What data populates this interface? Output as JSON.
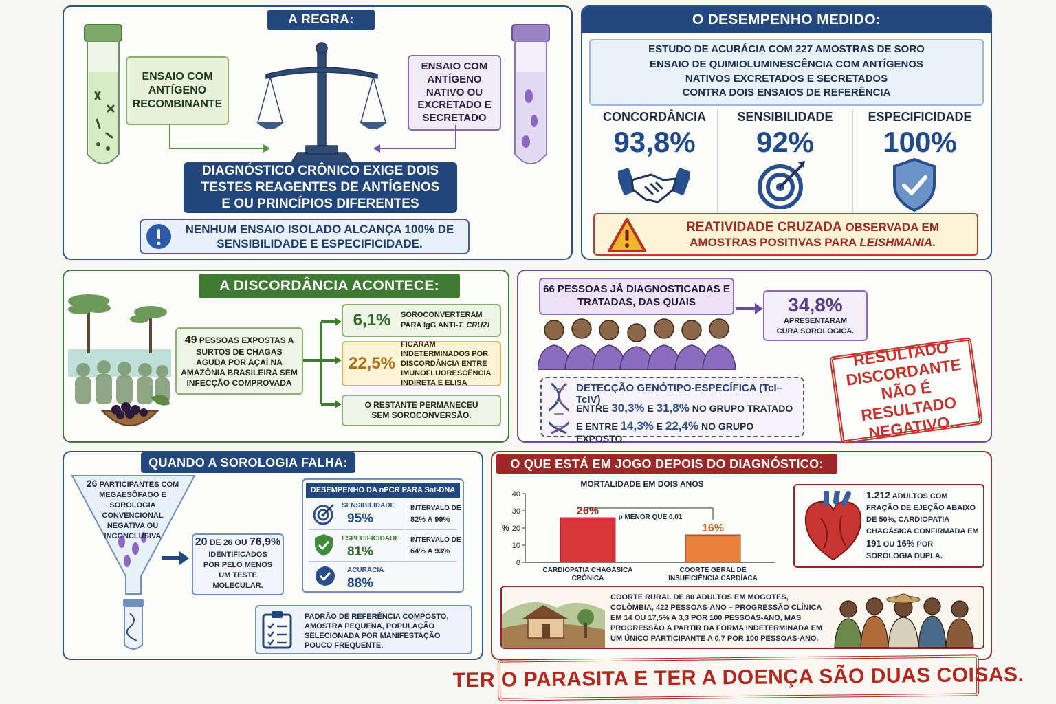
{
  "rule": {
    "title": "A REGRA:",
    "recombinant": "ENSAIO COM ANTÍGENO RECOMBINANTE",
    "native": "ENSAIO COM ANTÍGENO NATIVO OU EXCRETADO E SECRETADO",
    "requirement": "DIAGNÓSTICO CRÔNICO EXIGE DOIS TESTES REAGENTES DE ANTÍGENOS E OU PRINCÍPIOS DIFERENTES",
    "warning": "NENHUM ENSAIO ISOLADO ALCANÇA 100% DE SENSIBILIDADE E ESPECIFICIDADE."
  },
  "performance": {
    "title": "O DESEMPENHO MEDIDO:",
    "study_line1": "ESTUDO DE ACURÁCIA COM 227 AMOSTRAS DE SORO",
    "study_line2": "ENSAIO DE QUIMIOLUMINESCÊNCIA COM ANTÍGENOS",
    "study_line3": "NATIVOS EXCRETADOS E SECRETADOS",
    "study_line4": "CONTRA DOIS ENSAIOS DE REFERÊNCIA",
    "metrics": [
      {
        "label": "CONCORDÂNCIA",
        "value": "93,8%",
        "icon": "handshake-icon"
      },
      {
        "label": "SENSIBILIDADE",
        "value": "92%",
        "icon": "target-icon"
      },
      {
        "label": "ESPECIFICIDADE",
        "value": "100%",
        "icon": "shield-check-icon"
      }
    ],
    "cross_bold": "REATIVIDADE CRUZADA",
    "cross_rest": " OBSERVADA EM",
    "cross_line2_pre": "AMOSTRAS POSITIVAS PARA ",
    "cross_line2_em": "LEISHMANIA",
    "cross_line2_post": "."
  },
  "discord": {
    "title": "A DISCORDÂNCIA ACONTECE:",
    "exposed_num": "49",
    "exposed_text": " PESSOAS EXPOSTAS A SURTOS DE CHAGAS AGUDA POR AÇAÍ NA AMAZÔNIA BRASILEIRA SEM INFECÇÃO COMPROVADA",
    "outcomes": [
      {
        "value": "6,1%",
        "text_pre": "SOROCONVERTERAM PARA IgG ANTI-",
        "text_em": "T. CRUZI"
      },
      {
        "value": "22,5%",
        "text_pre": "FICARAM INDETERMINADOS POR DISCORDÂNCIA ENTRE IMUNOFLUORESCÊNCIA INDIRETA E ELISA",
        "text_em": ""
      },
      {
        "value": "",
        "text_pre": "O RESTANTE PERMANECEU SEM SOROCONVERSÃO.",
        "text_em": ""
      }
    ]
  },
  "treated": {
    "people": "66 PESSOAS JÁ DIAGNOSTICADAS E TRATADAS, DAS QUAIS",
    "cure_value": "34,8%",
    "cure_text": "APRESENTARAM CURA SOROLÓGICA.",
    "genotype_title": "DETECÇÃO GENÓTIPO-ESPECÍFICA (TcI–TcIV)",
    "g1_pre": "ENTRE ",
    "g1_a": "30,3%",
    "g1_mid": " E ",
    "g1_b": "31,8%",
    "g1_post": " NO GRUPO TRATADO",
    "g2_pre": "E ENTRE ",
    "g2_a": "14,3%",
    "g2_mid": " E ",
    "g2_b": "22,4%",
    "g2_post": " NO GRUPO EXPOSTO.",
    "stamp": "RESULTADO DISCORDANTE NÃO É RESULTADO NEGATIVO."
  },
  "fail": {
    "title": "QUANDO A SOROLOGIA FALHA:",
    "funnel_num": "26",
    "funnel_text": " PARTICIPANTES COM MEGAESÔFAGO E SOROLOGIA CONVENCIONAL NEGATIVA OU INCONCLUSIVA",
    "ident_pre": "20",
    "ident_mid": " DE 26 OU ",
    "ident_pct": "76,9%",
    "ident_text": "IDENTIFICADOS POR PELO MENOS UM TESTE MOLECULAR.",
    "npcr_title": "DESEMPENHO DA nPCR PARA Sat-DNA",
    "npcr": [
      {
        "label": "SENSIBILIDADE",
        "value": "95%",
        "ci_label": "INTERVALO DE",
        "ci": "82% A 99%",
        "icon": "target-icon"
      },
      {
        "label": "ESPECIFICIDADE",
        "value": "81%",
        "ci_label": "INTERVALO DE",
        "ci": "64% A 93%",
        "icon": "shield-check-icon"
      },
      {
        "label": "ACURÁCIA",
        "value": "88%",
        "ci_label": "",
        "ci": "",
        "icon": "check-circle-icon"
      }
    ],
    "limits": "PADRÃO DE REFERÊNCIA COMPOSTO, AMOSTRA PEQUENA, POPULAÇÃO SELECIONADA POR MANIFESTAÇÃO POUCO FREQUENTE."
  },
  "stakes": {
    "title": "O QUE ESTÁ EM JOGO DEPOIS DO DIAGNÓSTICO:",
    "heart_num": "1.212",
    "heart_text1": " ADULTOS COM FRAÇÃO DE EJEÇÃO ABAIXO DE 50%, CARDIOPATIA CHAGÁSICA CONFIRMADA EM ",
    "heart_191": "191",
    "heart_text2": " OU ",
    "heart_16": "16%",
    "heart_text3": " POR SOROLOGIA DUPLA.",
    "rural_text": "COORTE RURAL DE 80 ADULTOS EM MOGOTES, COLÔMBIA, 422 PESSOAS-ANO – PROGRESSÃO CLÍNICA EM 14 OU 17,5% A 3,3 POR 100 PESSOAS-ANO, MAS PROGRESSÃO A PARTIR DA FORMA INDETERMINADA EM UM ÚNICO PARTICIPANTE A 0,7 POR 100 PESSOAS-ANO.",
    "banner": "TER O PARASITA E TER A DOENÇA SÃO DUAS COISAS."
  },
  "chart_data": {
    "type": "bar",
    "title": "MORTALIDADE EM DOIS ANOS",
    "ylabel": "%",
    "ylim": [
      0,
      40
    ],
    "yticks": [
      "0",
      "10",
      "20",
      "30",
      "40"
    ],
    "categories": [
      "CARDIOPATIA CHAGÁSICA CRÔNICA",
      "COORTE GERAL DE INSUFICIÊNCIA CARDÍACA"
    ],
    "values": [
      26,
      16
    ],
    "value_labels": [
      "26%",
      "16%"
    ],
    "colors": [
      "#d9363a",
      "#e8823a"
    ],
    "annotation": "p MENOR QUE 0,01"
  }
}
